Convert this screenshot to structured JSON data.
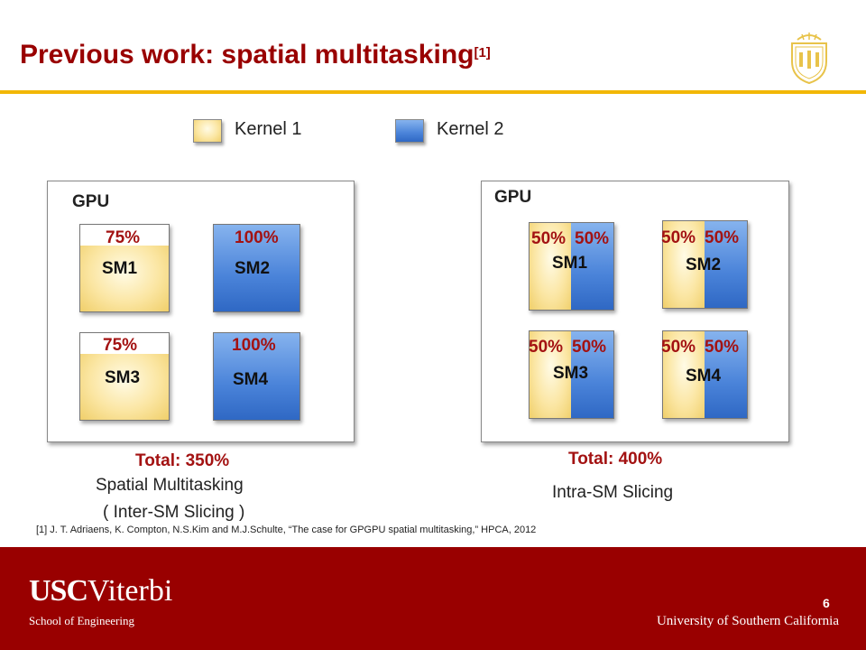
{
  "slide": {
    "title": "Previous work: spatial multitasking",
    "title_ref": "[1]",
    "page_number": "6"
  },
  "legend": [
    {
      "label": "Kernel 1",
      "color": "#f5d77a"
    },
    {
      "label": "Kernel 2",
      "color": "#4a83d9"
    }
  ],
  "left_panel": {
    "gpu_label": "GPU",
    "sms": [
      {
        "name": "SM1",
        "usage": "75%"
      },
      {
        "name": "SM2",
        "usage": "100%"
      },
      {
        "name": "SM3",
        "usage": "75%"
      },
      {
        "name": "SM4",
        "usage": "100%"
      }
    ],
    "total": "Total: 350%",
    "caption_line1": "Spatial Multitasking",
    "caption_line2": "( Inter-SM Slicing )"
  },
  "right_panel": {
    "gpu_label": "GPU",
    "sms": [
      {
        "name": "SM1",
        "kernel1": "50%",
        "kernel2": "50%"
      },
      {
        "name": "SM2",
        "kernel1": "50%",
        "kernel2": "50%"
      },
      {
        "name": "SM3",
        "kernel1": "50%",
        "kernel2": "50%"
      },
      {
        "name": "SM4",
        "kernel1": "50%",
        "kernel2": "50%"
      }
    ],
    "total": "Total: 400%",
    "caption": "Intra-SM Slicing"
  },
  "reference": "[1] J. T.  Adriaens, K. Compton, N.S.Kim and M.J.Schulte, “The  case for GPGPU spatial multitasking,” HPCA, 2012",
  "footer": {
    "logo_usc": "USC",
    "logo_viterbi": "Viterbi",
    "school": "School of Engineering",
    "university": "University of Southern California"
  },
  "colors": {
    "accent_red": "#990000",
    "gold_rule": "#f2b705",
    "percent_red": "#a31212"
  }
}
